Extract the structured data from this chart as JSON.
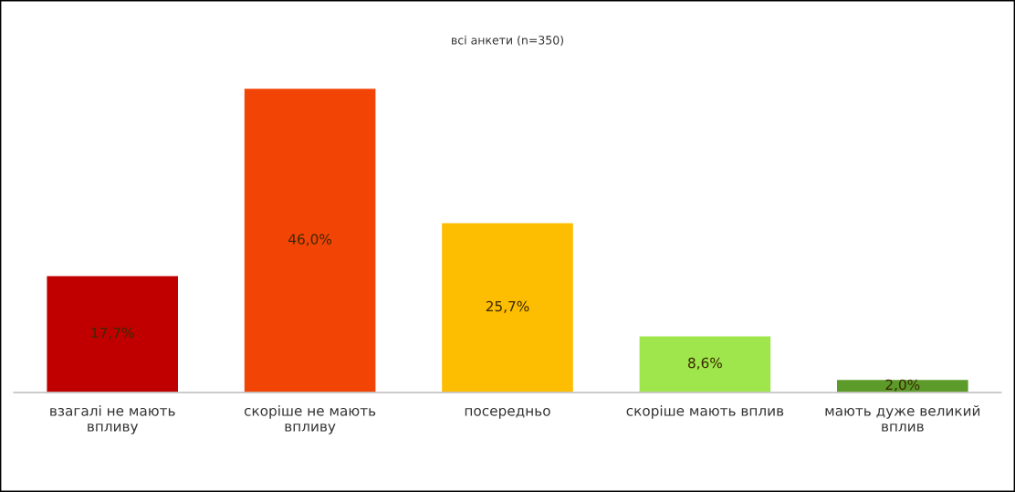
{
  "chart_data": {
    "type": "bar",
    "title": "всі анкети (n=350)",
    "categories": [
      "взагалі не мають\nвпливу",
      "скоріше не мають\nвпливу",
      "посередньо",
      "скоріше мають вплив",
      "мають дуже великий\nвплив"
    ],
    "values": [
      17.7,
      46.0,
      25.7,
      8.6,
      2.0
    ],
    "colors": [
      "#c00000",
      "#f24405",
      "#fdbd00",
      "#9ee64b",
      "#5c9a2a"
    ],
    "value_labels": [
      "17,7%",
      "46,0%",
      "25,7%",
      "8,6%",
      "2,0%"
    ]
  }
}
